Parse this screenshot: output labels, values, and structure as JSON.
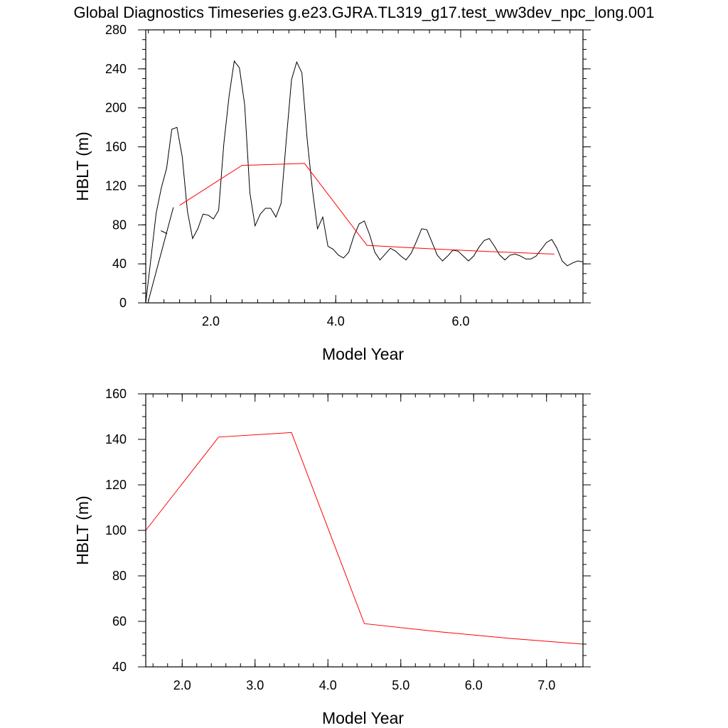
{
  "title": "Global Diagnostics Timeseries g.e23.GJRA.TL319_g17.test_ww3dev_npc_long.001",
  "colors": {
    "monthly_series": "#000000",
    "annual_series": "#ff0000",
    "axes": "#000000"
  },
  "chart_data": [
    {
      "type": "line",
      "xlabel": "Model Year",
      "ylabel": "HBLT (m)",
      "xlim": [
        0.958,
        7.958
      ],
      "ylim": [
        0,
        280
      ],
      "xticks": [
        2.0,
        4.0,
        6.0
      ],
      "xtick_labels": [
        "2.0",
        "4.0",
        "6.0"
      ],
      "yticks": [
        0,
        40,
        80,
        120,
        160,
        200,
        240,
        280
      ],
      "ytick_labels": [
        "0",
        "40",
        "80",
        "120",
        "160",
        "200",
        "240",
        "280"
      ],
      "series": [
        {
          "color": "#000000",
          "x": [
            1.0,
            1.4
          ],
          "y": [
            2,
            98
          ]
        },
        {
          "color": "#000000",
          "x": [
            0.958,
            1.042,
            1.125,
            1.208,
            1.292,
            1.375,
            1.458,
            1.542,
            1.625,
            1.708,
            1.792,
            1.875,
            1.958,
            2.042,
            2.125,
            2.208,
            2.292,
            2.375,
            2.458,
            2.542,
            2.625,
            2.708,
            2.792,
            2.875,
            2.958,
            3.042,
            3.125,
            3.208,
            3.292,
            3.375,
            3.458,
            3.542,
            3.625,
            3.708,
            3.792,
            3.875,
            3.958,
            4.042,
            4.125,
            4.208,
            4.292,
            4.375,
            4.458,
            4.542,
            4.625,
            4.708,
            4.792,
            4.875,
            4.958,
            5.042,
            5.125,
            5.208,
            5.292,
            5.375,
            5.458,
            5.542,
            5.625,
            5.708,
            5.792,
            5.875,
            5.958,
            6.042,
            6.125,
            6.208,
            6.292,
            6.375,
            6.458,
            6.542,
            6.625,
            6.708,
            6.792,
            6.875,
            6.958,
            7.042,
            7.125,
            7.208,
            7.292,
            7.375,
            7.458,
            7.542,
            7.625,
            7.708,
            7.792,
            7.875,
            7.958
          ],
          "y": [
            0,
            46,
            92,
            118,
            138,
            178,
            180,
            150,
            94,
            66,
            76,
            91,
            90,
            86,
            95,
            163,
            212,
            248,
            241,
            203,
            113,
            79,
            91,
            97,
            97,
            88,
            102,
            167,
            229,
            247,
            236,
            168,
            117,
            76,
            88,
            58,
            55,
            49,
            46,
            52,
            69,
            81,
            84,
            70,
            52,
            44,
            50,
            56,
            53,
            48,
            44,
            51,
            63,
            76,
            75,
            62,
            49,
            43,
            48,
            54,
            53,
            48,
            43,
            48,
            57,
            64,
            66,
            58,
            49,
            44,
            49,
            50,
            48,
            45,
            45,
            48,
            55,
            62,
            65,
            56,
            43,
            38,
            41,
            43,
            42
          ]
        },
        {
          "color": "#000000",
          "x": [
            1.2,
            1.3
          ],
          "y": [
            74,
            71
          ]
        },
        {
          "color": "#ff0000",
          "x": [
            1.5,
            2.5,
            3.5,
            4.5,
            5.5,
            6.5,
            7.5
          ],
          "y": [
            100,
            141,
            143,
            59,
            55.5,
            52.5,
            50
          ]
        }
      ]
    },
    {
      "type": "line",
      "xlabel": "Model Year",
      "ylabel": "HBLT (m)",
      "xlim": [
        1.5,
        7.5
      ],
      "ylim": [
        40,
        160
      ],
      "xticks": [
        2.0,
        3.0,
        4.0,
        5.0,
        6.0,
        7.0
      ],
      "xtick_labels": [
        "2.0",
        "3.0",
        "4.0",
        "5.0",
        "6.0",
        "7.0"
      ],
      "yticks": [
        40,
        60,
        80,
        100,
        120,
        140,
        160
      ],
      "ytick_labels": [
        "40",
        "60",
        "80",
        "100",
        "120",
        "140",
        "160"
      ],
      "series": [
        {
          "color": "#ff0000",
          "x": [
            1.5,
            2.5,
            3.5,
            4.5,
            5.5,
            6.5,
            7.5
          ],
          "y": [
            100,
            141,
            143,
            59,
            55.5,
            52.5,
            50
          ]
        }
      ]
    }
  ]
}
